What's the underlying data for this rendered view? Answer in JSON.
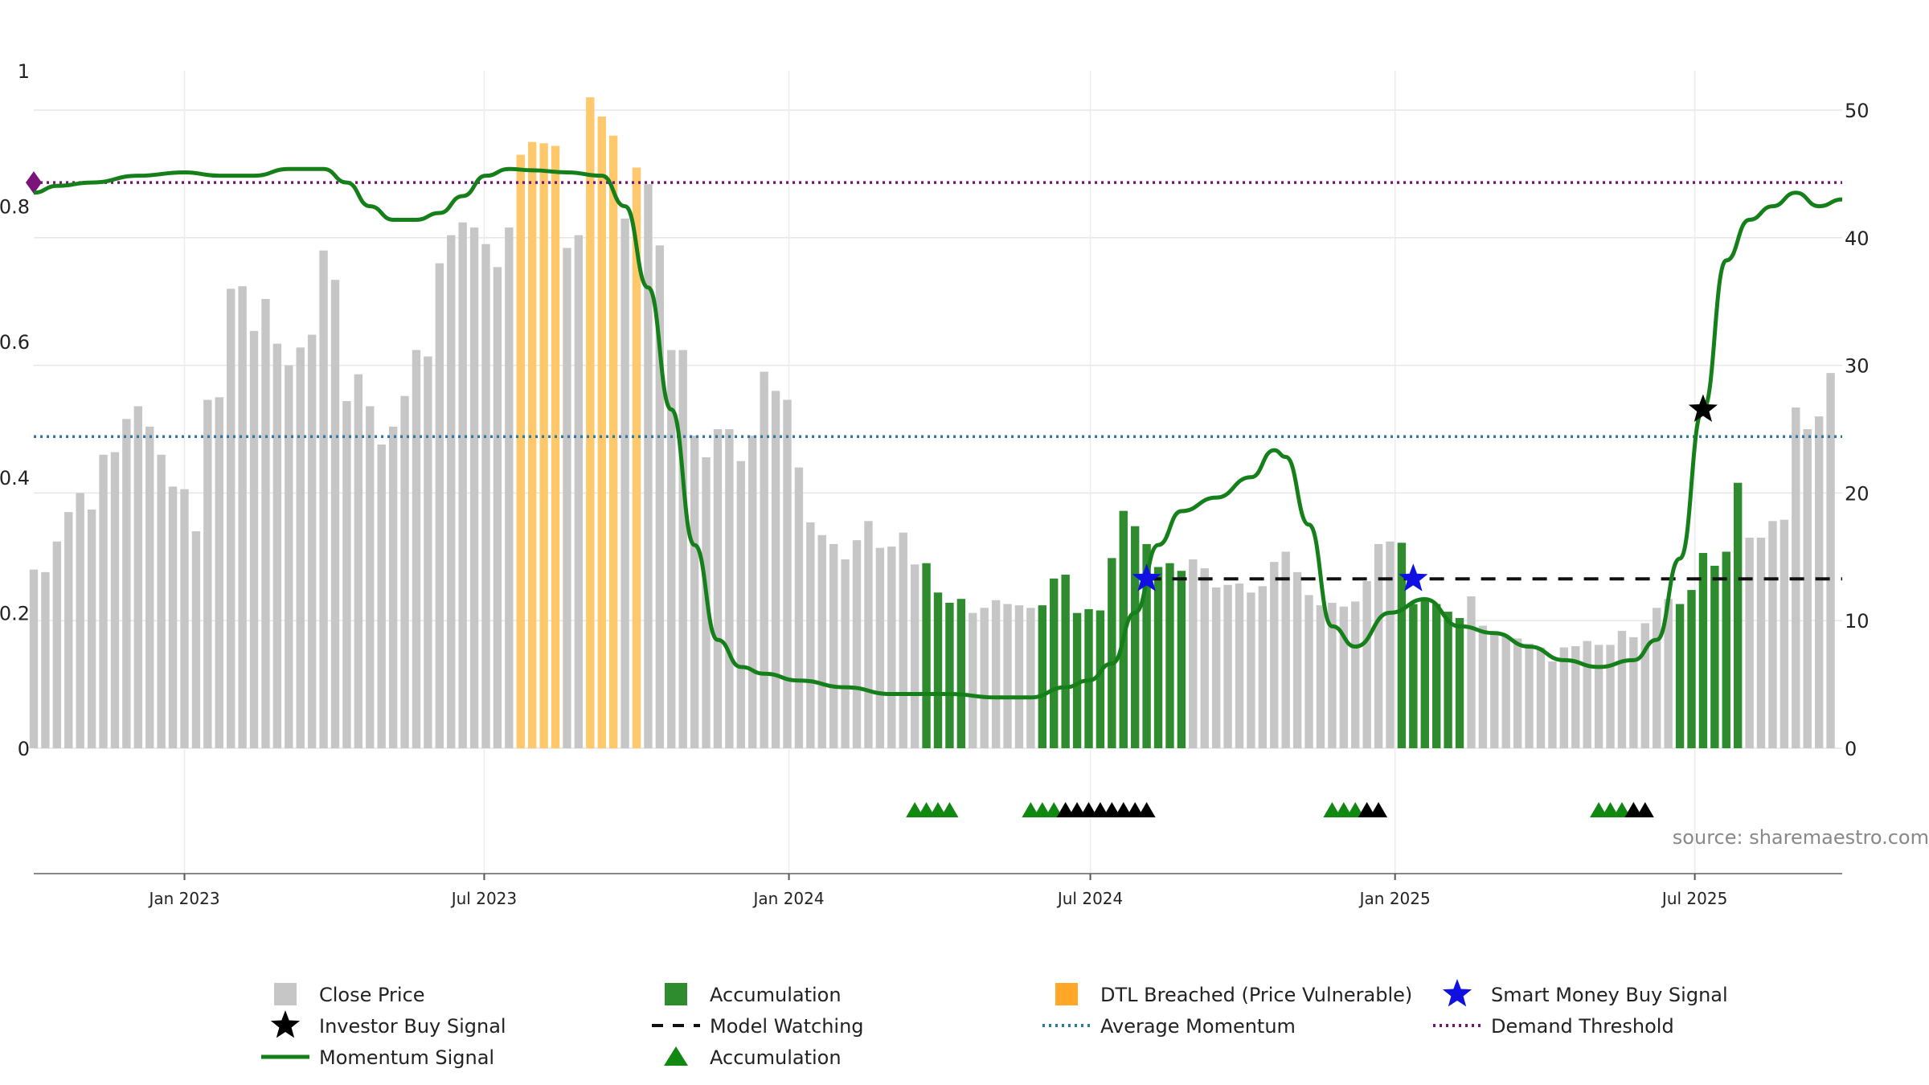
{
  "source_label": "source: sharemaestro.com",
  "colors": {
    "close": "#c6c6c6",
    "accumulation": "#2e8b2e",
    "dtl": "#ffc96b",
    "momentum": "#15801a",
    "watch": "#111111",
    "avg_momentum": "#2f79a0",
    "demand": "#7a137a",
    "smart_star": "#1010e0",
    "investor_star": "#000000",
    "acc_triangle": "#118811",
    "watch_triangle": "#000000"
  },
  "chart_data": {
    "type": "bar",
    "title": "",
    "xlabel": "",
    "ylabel": "",
    "left_axis": {
      "range": [
        0,
        1
      ],
      "ticks": [
        "0",
        "0.2",
        "0.4",
        "0.6",
        "0.8",
        "1"
      ]
    },
    "right_axis": {
      "range": [
        0,
        50
      ],
      "ticks": [
        "0",
        "10",
        "20",
        "30",
        "40",
        "50"
      ]
    },
    "x_range": [
      "2022-10-02",
      "2025-09-28"
    ],
    "x_ticks": [
      {
        "date": "2023-01-01",
        "label": "Jan 2023"
      },
      {
        "date": "2023-07-01",
        "label": "Jul 2023"
      },
      {
        "date": "2024-01-01",
        "label": "Jan 2024"
      },
      {
        "date": "2024-07-01",
        "label": "Jul 2024"
      },
      {
        "date": "2025-01-01",
        "label": "Jan 2025"
      },
      {
        "date": "2025-07-01",
        "label": "Jul 2025"
      }
    ],
    "bar_start_date": "2022-10-02",
    "bar_interval_days": 7,
    "close_prices": [
      14.0,
      13.8,
      16.2,
      18.5,
      20.0,
      18.7,
      23.0,
      23.2,
      25.8,
      26.8,
      25.2,
      23.0,
      20.5,
      20.3,
      17.0,
      27.3,
      27.5,
      36.0,
      36.2,
      32.7,
      35.2,
      31.7,
      30.0,
      31.4,
      32.4,
      39.0,
      36.7,
      27.2,
      29.3,
      26.8,
      23.8,
      25.2,
      27.6,
      31.2,
      30.7,
      38.0,
      40.2,
      41.2,
      40.8,
      39.5,
      37.7,
      40.8,
      46.5,
      47.5,
      47.4,
      47.2,
      39.2,
      40.2,
      51.0,
      49.5,
      48.0,
      41.5,
      45.5,
      44.2,
      39.4,
      31.2,
      31.2,
      24.5,
      22.8,
      25.0,
      25.0,
      22.5,
      24.5,
      29.5,
      28.0,
      27.3,
      22.0,
      17.7,
      16.7,
      16.0,
      14.8,
      16.3,
      17.8,
      15.7,
      15.8,
      16.9,
      14.4,
      14.5,
      12.2,
      11.4,
      11.7,
      10.6,
      11.0,
      11.6,
      11.3,
      11.2,
      11.0,
      11.2,
      13.3,
      13.6,
      10.6,
      10.9,
      10.8,
      14.9,
      18.6,
      17.4,
      16.0,
      14.2,
      14.5,
      13.9,
      14.8,
      14.1,
      12.6,
      12.8,
      12.9,
      12.2,
      12.7,
      14.6,
      15.4,
      13.8,
      12.0,
      11.2,
      11.4,
      11.1,
      11.5,
      13.1,
      16.0,
      16.2,
      16.1,
      11.3,
      11.6,
      11.3,
      10.7,
      10.2,
      11.9,
      9.6,
      9.0,
      8.8,
      8.6,
      8.2,
      7.9,
      6.8,
      7.9,
      8.0,
      8.4,
      8.1,
      8.1,
      9.2,
      8.7,
      9.8,
      11.0,
      11.7,
      11.3,
      12.4,
      15.3,
      14.3,
      15.4,
      20.8,
      16.5,
      16.5,
      17.8,
      17.9,
      26.7,
      25.0,
      26.0,
      29.4
    ],
    "bar_status": [
      "close",
      "close",
      "close",
      "close",
      "close",
      "close",
      "close",
      "close",
      "close",
      "close",
      "close",
      "close",
      "close",
      "close",
      "close",
      "close",
      "close",
      "close",
      "close",
      "close",
      "close",
      "close",
      "close",
      "close",
      "close",
      "close",
      "close",
      "close",
      "close",
      "close",
      "close",
      "close",
      "close",
      "close",
      "close",
      "close",
      "close",
      "close",
      "close",
      "close",
      "close",
      "close",
      "dtl",
      "dtl",
      "dtl",
      "dtl",
      "close",
      "close",
      "dtl",
      "dtl",
      "dtl",
      "close",
      "dtl",
      "close",
      "close",
      "close",
      "close",
      "close",
      "close",
      "close",
      "close",
      "close",
      "close",
      "close",
      "close",
      "close",
      "close",
      "close",
      "close",
      "close",
      "close",
      "close",
      "close",
      "close",
      "close",
      "close",
      "close",
      "acc",
      "acc",
      "acc",
      "acc",
      "close",
      "close",
      "close",
      "close",
      "close",
      "close",
      "acc",
      "acc",
      "acc",
      "acc",
      "acc",
      "acc",
      "acc",
      "acc",
      "acc",
      "acc",
      "acc",
      "acc",
      "acc",
      "close",
      "close",
      "close",
      "close",
      "close",
      "close",
      "close",
      "close",
      "close",
      "close",
      "close",
      "close",
      "close",
      "close",
      "close",
      "close",
      "close",
      "close",
      "acc",
      "acc",
      "acc",
      "acc",
      "acc",
      "acc",
      "close",
      "close",
      "close",
      "close",
      "close",
      "close",
      "close",
      "close",
      "close",
      "close",
      "close",
      "close",
      "close",
      "close",
      "close",
      "close",
      "close",
      "close",
      "acc",
      "acc",
      "acc",
      "acc",
      "acc",
      "acc",
      "close",
      "close",
      "close",
      "close",
      "close",
      "close",
      "close",
      "close",
      "close",
      "close",
      "close",
      "close",
      "close",
      "close",
      "close"
    ],
    "momentum": {
      "dates": [
        "2022-10-02",
        "2022-10-16",
        "2022-11-06",
        "2022-12-04",
        "2023-01-01",
        "2023-01-22",
        "2023-02-12",
        "2023-03-05",
        "2023-03-26",
        "2023-04-09",
        "2023-04-23",
        "2023-05-07",
        "2023-05-21",
        "2023-06-04",
        "2023-06-18",
        "2023-07-02",
        "2023-07-16",
        "2023-07-30",
        "2023-08-20",
        "2023-09-10",
        "2023-09-24",
        "2023-10-08",
        "2023-10-22",
        "2023-11-05",
        "2023-11-19",
        "2023-12-03",
        "2023-12-17",
        "2024-01-07",
        "2024-02-04",
        "2024-03-03",
        "2024-04-07",
        "2024-05-05",
        "2024-05-26",
        "2024-06-16",
        "2024-06-30",
        "2024-07-14",
        "2024-07-28",
        "2024-08-11",
        "2024-08-25",
        "2024-09-15",
        "2024-10-06",
        "2024-10-20",
        "2024-10-27",
        "2024-11-10",
        "2024-11-24",
        "2024-12-08",
        "2024-12-29",
        "2025-01-19",
        "2025-02-09",
        "2025-03-02",
        "2025-03-23",
        "2025-04-13",
        "2025-05-04",
        "2025-05-25",
        "2025-06-08",
        "2025-06-22",
        "2025-07-06",
        "2025-07-20",
        "2025-08-03",
        "2025-08-17",
        "2025-08-31",
        "2025-09-14",
        "2025-09-28"
      ],
      "values": [
        0.82,
        0.83,
        0.835,
        0.845,
        0.85,
        0.845,
        0.845,
        0.855,
        0.855,
        0.835,
        0.8,
        0.78,
        0.78,
        0.79,
        0.815,
        0.845,
        0.855,
        0.853,
        0.85,
        0.845,
        0.8,
        0.68,
        0.5,
        0.3,
        0.16,
        0.12,
        0.11,
        0.1,
        0.09,
        0.08,
        0.08,
        0.075,
        0.075,
        0.09,
        0.1,
        0.125,
        0.2,
        0.3,
        0.35,
        0.37,
        0.4,
        0.44,
        0.43,
        0.33,
        0.18,
        0.15,
        0.2,
        0.22,
        0.18,
        0.17,
        0.15,
        0.13,
        0.12,
        0.13,
        0.16,
        0.28,
        0.5,
        0.72,
        0.78,
        0.8,
        0.82,
        0.8,
        0.81
      ]
    },
    "average_momentum": 0.46,
    "demand_threshold": 0.835,
    "model_watching": {
      "from": "2024-08-04",
      "to": "2025-09-28",
      "value": 0.25
    },
    "smart_money_buy_signals": [
      {
        "date": "2024-08-04",
        "value": 0.25
      },
      {
        "date": "2025-01-12",
        "value": 0.25
      }
    ],
    "investor_buy_signals": [
      {
        "date": "2025-07-06",
        "value": 0.5
      }
    ],
    "accumulation_triangles": [
      "2024-03-17",
      "2024-03-24",
      "2024-03-31",
      "2024-04-07",
      "2024-05-26",
      "2024-06-02",
      "2024-06-09",
      "2024-06-16",
      "2024-11-24",
      "2024-12-01",
      "2024-12-08",
      "2024-12-15",
      "2025-05-04",
      "2025-05-11",
      "2025-05-18",
      "2025-05-25"
    ],
    "watch_triangles": [
      "2024-06-16",
      "2024-06-23",
      "2024-06-30",
      "2024-07-07",
      "2024-07-14",
      "2024-07-21",
      "2024-07-28",
      "2024-08-04",
      "2024-12-15",
      "2024-12-22",
      "2025-05-25",
      "2025-06-01"
    ],
    "legend": [
      {
        "key": "close",
        "symbol": "square",
        "label": "Close Price"
      },
      {
        "key": "investor",
        "symbol": "star-black",
        "label": "Investor Buy Signal"
      },
      {
        "key": "momentum",
        "symbol": "line-green",
        "label": "Momentum Signal"
      },
      {
        "key": "accumulation",
        "symbol": "square-green",
        "label": "Accumulation"
      },
      {
        "key": "watch",
        "symbol": "dash-black",
        "label": "Model Watching"
      },
      {
        "key": "acc_tri",
        "symbol": "triangle-green",
        "label": "Accumulation"
      },
      {
        "key": "dtl",
        "symbol": "square-orange",
        "label": "DTL Breached (Price Vulnerable)"
      },
      {
        "key": "avg",
        "symbol": "dot-blue",
        "label": "Average Momentum"
      },
      {
        "key": "smart",
        "symbol": "star-blue",
        "label": "Smart Money Buy Signal"
      },
      {
        "key": "demand",
        "symbol": "dot-purple",
        "label": "Demand Threshold"
      }
    ]
  }
}
